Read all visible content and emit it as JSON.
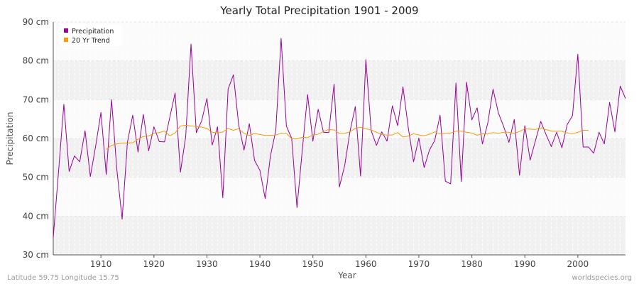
{
  "chart_data": {
    "type": "line",
    "title": "Yearly Total Precipitation 1901 - 2009",
    "xlabel": "Year",
    "ylabel": "Precipitation",
    "y_unit": "cm",
    "xlim": [
      1901,
      2009
    ],
    "ylim": [
      30,
      90
    ],
    "x_ticks": [
      1910,
      1920,
      1930,
      1940,
      1950,
      1960,
      1970,
      1980,
      1990,
      2000
    ],
    "y_ticks": [
      30,
      40,
      50,
      60,
      70,
      80,
      90
    ],
    "y_tick_labels": [
      "30 cm",
      "40 cm",
      "50 cm",
      "60 cm",
      "70 cm",
      "80 cm",
      "90 cm"
    ],
    "grid": true,
    "legend_position": "top-left",
    "series": [
      {
        "name": "Precipitation",
        "color": "#990099",
        "x_start": 1901,
        "values": [
          34.5,
          51.5,
          68.8,
          51.5,
          55.5,
          54,
          62,
          50.2,
          58,
          66.7,
          50.7,
          70,
          52,
          39.2,
          59,
          66,
          56.5,
          66.2,
          56.8,
          63,
          59.2,
          59.1,
          65.5,
          71.7,
          51.3,
          60.5,
          84.3,
          61.5,
          64.5,
          70.3,
          58.3,
          63,
          44.7,
          72.7,
          76.4,
          63.5,
          57,
          63.8,
          54.3,
          51.8,
          44.5,
          55.6,
          62,
          85.8,
          63.2,
          60,
          42.2,
          57,
          71.3,
          59.3,
          67.5,
          61.6,
          61.5,
          74,
          47.5,
          53,
          61.8,
          68.2,
          50.3,
          80.3,
          62,
          58.2,
          61.7,
          59.3,
          68.4,
          63.3,
          73.3,
          62.8,
          54,
          60.1,
          52.5,
          57,
          59.5,
          66,
          49,
          48.3,
          74.3,
          48.9,
          74.5,
          64.8,
          67.9,
          58.6,
          63.9,
          72.7,
          66.6,
          63.1,
          59,
          64.9,
          50.5,
          63.3,
          54.4,
          59.4,
          64.4,
          61,
          57.9,
          61.6,
          57.6,
          63.6,
          65.9,
          81.7,
          57.8,
          57.8,
          56.2,
          61.6,
          58.6,
          69.3,
          61.7,
          73.5,
          70.3
        ]
      },
      {
        "name": "20 Yr Trend",
        "color": "#ff9900",
        "x_start": 1911,
        "values": [
          57.2,
          58.2,
          58.6,
          58.8,
          58.8,
          58.9,
          59.8,
          60.5,
          60.6,
          61.3,
          61.5,
          61.9,
          60.7,
          61.4,
          63.2,
          63.4,
          63.2,
          63.1,
          62.9,
          62.6,
          61.6,
          61.4,
          61.7,
          62.6,
          62.1,
          62.5,
          61.3,
          60.8,
          61.3,
          61,
          60.8,
          60.8,
          60.9,
          61.3,
          61.3,
          59.9,
          59.9,
          60.3,
          60.2,
          60.9,
          61.1,
          61.8,
          62.3,
          62.2,
          61.3,
          61.3,
          61.7,
          62.6,
          62.9,
          62.5,
          62.2,
          61.6,
          61,
          60.9,
          60.9,
          61.5,
          60.4,
          60.6,
          61.2,
          60.9,
          60.7,
          61.1,
          61.7,
          61.2,
          61.3,
          61.4,
          61.9,
          61.9,
          61.6,
          61.4,
          60.8,
          61.2,
          61.2,
          61.5,
          61.3,
          61.6,
          61.6,
          61.3,
          61.8,
          62.5,
          62.4,
          62.3,
          62.7,
          62.3,
          61.9,
          61.9,
          61.9,
          61.4,
          61.2,
          61.6,
          62.1,
          62.1
        ]
      }
    ]
  },
  "footer": {
    "location": "Latitude 59.75 Longitude 15.75",
    "source": "worldspecies.org"
  }
}
